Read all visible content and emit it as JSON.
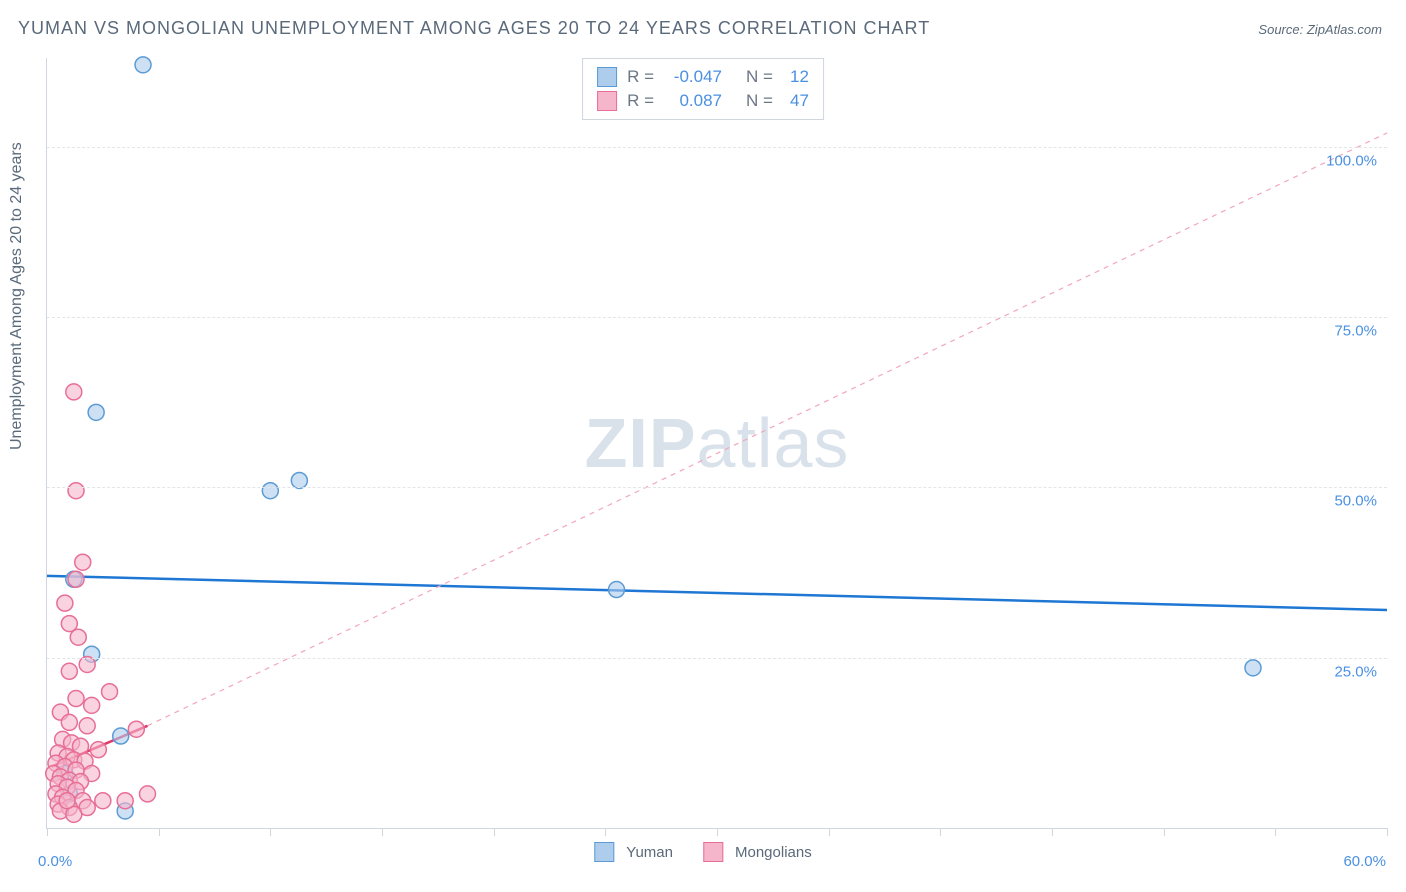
{
  "title": "YUMAN VS MONGOLIAN UNEMPLOYMENT AMONG AGES 20 TO 24 YEARS CORRELATION CHART",
  "source_label": "Source:",
  "source_name": "ZipAtlas.com",
  "y_axis_label": "Unemployment Among Ages 20 to 24 years",
  "watermark_bold": "ZIP",
  "watermark_rest": "atlas",
  "chart": {
    "type": "scatter",
    "background_color": "#ffffff",
    "grid_color": "#e2e6ea",
    "grid_style": "dashed",
    "axis_color": "#cfd6dd",
    "tick_label_color": "#4a90e2",
    "title_color": "#5a6a7a",
    "title_fontsize": 18,
    "axis_label_fontsize": 16,
    "tick_fontsize": 15,
    "xlim": [
      0,
      60
    ],
    "ylim": [
      0,
      113
    ],
    "xtick_positions": [
      0,
      5,
      10,
      15,
      20,
      25,
      30,
      35,
      40,
      45,
      50,
      55,
      60
    ],
    "xtick_labels": {
      "0": "0.0%",
      "60": "60.0%"
    },
    "ytick_positions": [
      25,
      50,
      75,
      100
    ],
    "ytick_labels": {
      "25": "25.0%",
      "50": "50.0%",
      "75": "75.0%",
      "100": "100.0%"
    },
    "marker_radius": 8,
    "marker_stroke_width": 1.5,
    "marker_fill_opacity": 0.25,
    "series": [
      {
        "name": "Yuman",
        "color": "#5b9bd5",
        "fill": "#aecdec",
        "R": "-0.047",
        "N": "12",
        "trend": {
          "x1": 0,
          "y1": 37,
          "x2": 60,
          "y2": 32,
          "stroke": "#1f77d4",
          "width": 2.5,
          "dash": "none"
        },
        "dash_trend": null,
        "points": [
          {
            "x": 4.3,
            "y": 112
          },
          {
            "x": 2.2,
            "y": 61
          },
          {
            "x": 11.3,
            "y": 51
          },
          {
            "x": 10.0,
            "y": 49.5
          },
          {
            "x": 1.2,
            "y": 36.5
          },
          {
            "x": 25.5,
            "y": 35
          },
          {
            "x": 2.0,
            "y": 25.5
          },
          {
            "x": 54.0,
            "y": 23.5
          },
          {
            "x": 3.3,
            "y": 13.5
          },
          {
            "x": 0.8,
            "y": 8
          },
          {
            "x": 3.5,
            "y": 2.5
          },
          {
            "x": 1.0,
            "y": 5
          }
        ]
      },
      {
        "name": "Mongolians",
        "color": "#e76f96",
        "fill": "#f5b6cb",
        "R": "0.087",
        "N": "47",
        "trend": {
          "x1": 0.2,
          "y1": 9,
          "x2": 4.5,
          "y2": 15,
          "stroke": "#e03a6a",
          "width": 2.5,
          "dash": "none"
        },
        "dash_trend": {
          "x1": 4.5,
          "y1": 15,
          "x2": 60,
          "y2": 102,
          "stroke": "#f2a6bd",
          "width": 1.2,
          "dash": "5,5"
        },
        "points": [
          {
            "x": 1.2,
            "y": 64
          },
          {
            "x": 1.3,
            "y": 49.5
          },
          {
            "x": 1.6,
            "y": 39
          },
          {
            "x": 1.3,
            "y": 36.5
          },
          {
            "x": 0.8,
            "y": 33
          },
          {
            "x": 1.0,
            "y": 30
          },
          {
            "x": 1.4,
            "y": 28
          },
          {
            "x": 1.8,
            "y": 24
          },
          {
            "x": 1.0,
            "y": 23
          },
          {
            "x": 2.8,
            "y": 20
          },
          {
            "x": 1.3,
            "y": 19
          },
          {
            "x": 2.0,
            "y": 18
          },
          {
            "x": 0.6,
            "y": 17
          },
          {
            "x": 1.0,
            "y": 15.5
          },
          {
            "x": 1.8,
            "y": 15
          },
          {
            "x": 4.0,
            "y": 14.5
          },
          {
            "x": 0.7,
            "y": 13
          },
          {
            "x": 1.1,
            "y": 12.5
          },
          {
            "x": 1.5,
            "y": 12
          },
          {
            "x": 2.3,
            "y": 11.5
          },
          {
            "x": 0.5,
            "y": 11
          },
          {
            "x": 0.9,
            "y": 10.5
          },
          {
            "x": 1.2,
            "y": 10
          },
          {
            "x": 1.7,
            "y": 9.8
          },
          {
            "x": 0.4,
            "y": 9.5
          },
          {
            "x": 0.8,
            "y": 9
          },
          {
            "x": 1.3,
            "y": 8.5
          },
          {
            "x": 2.0,
            "y": 8
          },
          {
            "x": 0.3,
            "y": 8
          },
          {
            "x": 0.6,
            "y": 7.5
          },
          {
            "x": 1.0,
            "y": 7
          },
          {
            "x": 1.5,
            "y": 6.8
          },
          {
            "x": 0.5,
            "y": 6.5
          },
          {
            "x": 0.9,
            "y": 6
          },
          {
            "x": 1.3,
            "y": 5.5
          },
          {
            "x": 0.4,
            "y": 5
          },
          {
            "x": 0.7,
            "y": 4.5
          },
          {
            "x": 1.6,
            "y": 4
          },
          {
            "x": 2.5,
            "y": 4
          },
          {
            "x": 3.5,
            "y": 4
          },
          {
            "x": 4.5,
            "y": 5
          },
          {
            "x": 0.5,
            "y": 3.5
          },
          {
            "x": 1.0,
            "y": 3
          },
          {
            "x": 1.8,
            "y": 3
          },
          {
            "x": 0.6,
            "y": 2.5
          },
          {
            "x": 1.2,
            "y": 2
          },
          {
            "x": 0.9,
            "y": 4
          }
        ]
      }
    ]
  },
  "legend_top": {
    "r_label": "R =",
    "n_label": "N ="
  },
  "legend_bottom": [
    {
      "label": "Yuman",
      "fill": "#aecdec",
      "stroke": "#5b9bd5"
    },
    {
      "label": "Mongolians",
      "fill": "#f5b6cb",
      "stroke": "#e76f96"
    }
  ]
}
